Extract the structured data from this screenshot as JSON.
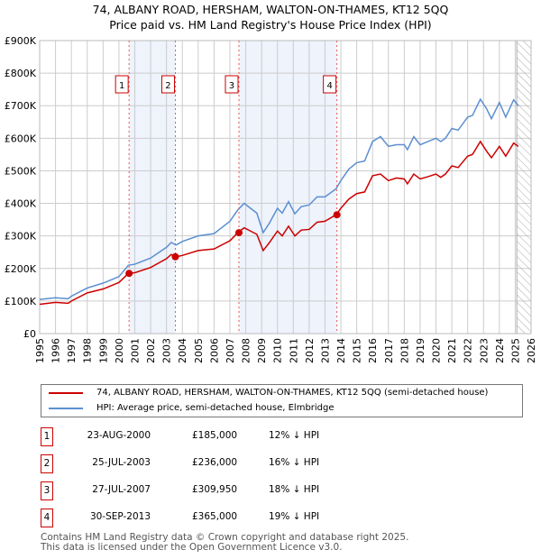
{
  "title": "74, ALBANY ROAD, HERSHAM, WALTON-ON-THAMES, KT12 5QQ",
  "subtitle": "Price paid vs. HM Land Registry's House Price Index (HPI)",
  "chart_data": {
    "type": "line",
    "xlim": [
      1995,
      2026
    ],
    "ylim": [
      0,
      900000
    ],
    "yticks": [
      0,
      100000,
      200000,
      300000,
      400000,
      500000,
      600000,
      700000,
      800000,
      900000
    ],
    "ytick_labels": [
      "£0",
      "£100K",
      "£200K",
      "£300K",
      "£400K",
      "£500K",
      "£600K",
      "£700K",
      "£800K",
      "£900K"
    ],
    "xticks": [
      1995,
      1996,
      1997,
      1998,
      1999,
      2000,
      2001,
      2002,
      2003,
      2004,
      2005,
      2006,
      2007,
      2008,
      2009,
      2010,
      2011,
      2012,
      2013,
      2014,
      2015,
      2016,
      2017,
      2018,
      2019,
      2020,
      2021,
      2022,
      2023,
      2024,
      2025,
      2026
    ],
    "forecast_from": 2025.1,
    "x": [
      1995,
      1996,
      1996.8,
      1997,
      1998,
      1999,
      2000,
      2000.6,
      2001,
      2002,
      2003,
      2003.3,
      2003.6,
      2004,
      2005,
      2006,
      2007,
      2007.5,
      2007.9,
      2008.3,
      2008.7,
      2009.1,
      2009.5,
      2010,
      2010.3,
      2010.7,
      2011.1,
      2011.5,
      2012,
      2012.5,
      2013,
      2013.7,
      2014,
      2014.5,
      2015,
      2015.5,
      2016,
      2016.5,
      2017,
      2017.5,
      2018,
      2018.2,
      2018.6,
      2019,
      2019.5,
      2020,
      2020.3,
      2020.6,
      2021,
      2021.4,
      2022,
      2022.3,
      2022.8,
      2023.2,
      2023.5,
      2024,
      2024.4,
      2024.9,
      2025.2
    ],
    "series": [
      {
        "name": "74, ALBANY ROAD, HERSHAM, WALTON-ON-THAMES, KT12 5QQ (semi-detached house)",
        "color": "#cc0000",
        "values": [
          90000,
          96000,
          93000,
          100000,
          125000,
          137000,
          157000,
          185000,
          187000,
          203000,
          230000,
          243000,
          236000,
          240000,
          255000,
          260000,
          285000,
          310000,
          325000,
          315000,
          305000,
          255000,
          280000,
          315000,
          300000,
          330000,
          300000,
          318000,
          320000,
          342000,
          345000,
          365000,
          385000,
          413000,
          430000,
          435000,
          485000,
          490000,
          470000,
          478000,
          475000,
          460000,
          490000,
          475000,
          482000,
          490000,
          480000,
          490000,
          515000,
          510000,
          545000,
          550000,
          590000,
          560000,
          540000,
          575000,
          545000,
          585000,
          575000
        ]
      },
      {
        "name": "HPI: Average price, semi-detached house, Elmbridge",
        "color": "#5b8fd1",
        "values": [
          105000,
          110000,
          107000,
          115000,
          140000,
          155000,
          175000,
          210000,
          213000,
          232000,
          265000,
          280000,
          272000,
          283000,
          300000,
          307000,
          345000,
          380000,
          400000,
          385000,
          370000,
          310000,
          340000,
          385000,
          370000,
          405000,
          368000,
          390000,
          395000,
          420000,
          420000,
          445000,
          470000,
          505000,
          525000,
          530000,
          590000,
          605000,
          575000,
          580000,
          580000,
          565000,
          605000,
          580000,
          590000,
          600000,
          590000,
          600000,
          630000,
          625000,
          665000,
          670000,
          720000,
          690000,
          660000,
          710000,
          665000,
          718000,
          700000
        ]
      }
    ],
    "sales": [
      {
        "n": "1",
        "x": 2000.64,
        "date": "23-AUG-2000",
        "price": 185000,
        "price_label": "£185,000",
        "hpi": "12% ↓ HPI"
      },
      {
        "n": "2",
        "x": 2003.56,
        "date": "25-JUL-2003",
        "price": 236000,
        "price_label": "£236,000",
        "hpi": "16% ↓ HPI"
      },
      {
        "n": "3",
        "x": 2007.57,
        "date": "27-JUL-2007",
        "price": 309950,
        "price_label": "£309,950",
        "hpi": "18% ↓ HPI"
      },
      {
        "n": "4",
        "x": 2013.75,
        "date": "30-SEP-2013",
        "price": 365000,
        "price_label": "£365,000",
        "hpi": "19% ↓ HPI"
      }
    ]
  },
  "legend": {
    "property": "74, ALBANY ROAD, HERSHAM, WALTON-ON-THAMES, KT12 5QQ (semi-detached house)",
    "hpi": "HPI: Average price, semi-detached house, Elmbridge"
  },
  "footer": [
    "Contains HM Land Registry data © Crown copyright and database right 2025.",
    "This data is licensed under the Open Government Licence v3.0."
  ]
}
